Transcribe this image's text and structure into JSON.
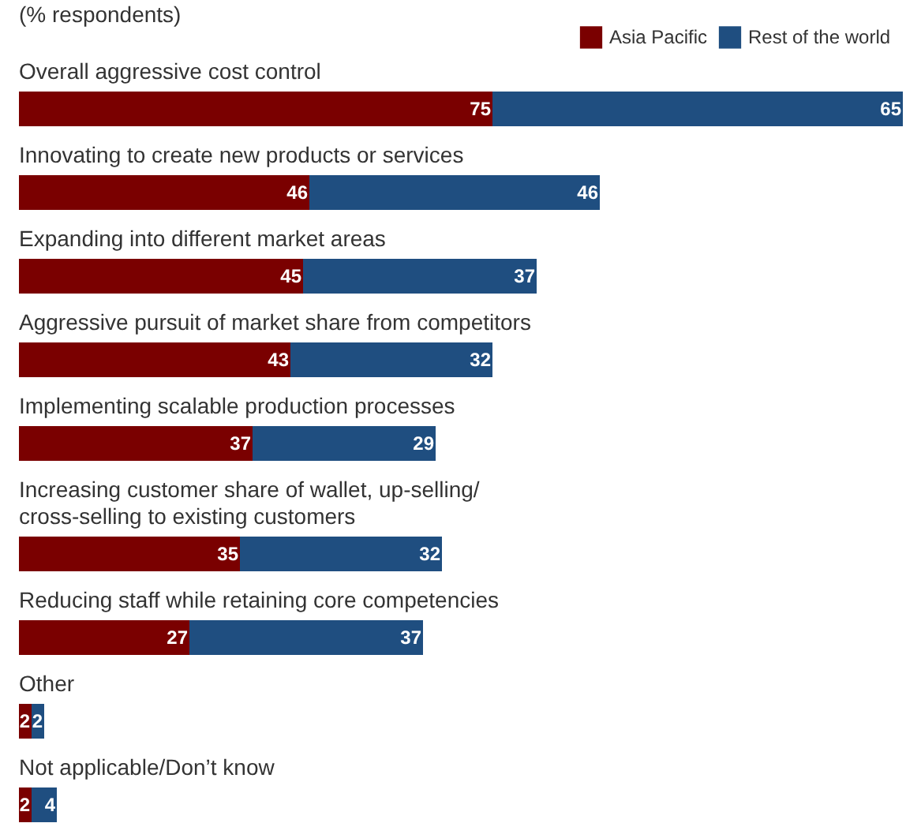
{
  "chart_data": {
    "type": "bar",
    "orientation": "horizontal",
    "stacked": true,
    "data_labels": true,
    "legend": "top right",
    "subtitle": "(% respondents)",
    "categories": [
      "Overall aggressive cost control",
      "Innovating to create new products or services",
      "Expanding into different market areas",
      "Aggressive pursuit of market share from competitors",
      "Implementing scalable production processes",
      "Increasing customer share of wallet, up-selling/ cross-selling to existing customers",
      "Reducing staff while retaining core competencies",
      "Other",
      "Not applicable/Don’t know"
    ],
    "series": [
      {
        "name": "Asia Pacific",
        "color": "#7a0000",
        "values": [
          75,
          46,
          45,
          43,
          37,
          35,
          27,
          2,
          2
        ]
      },
      {
        "name": "Rest of the world",
        "color": "#1f4e80",
        "values": [
          65,
          46,
          37,
          32,
          29,
          32,
          37,
          2,
          4
        ]
      }
    ]
  }
}
